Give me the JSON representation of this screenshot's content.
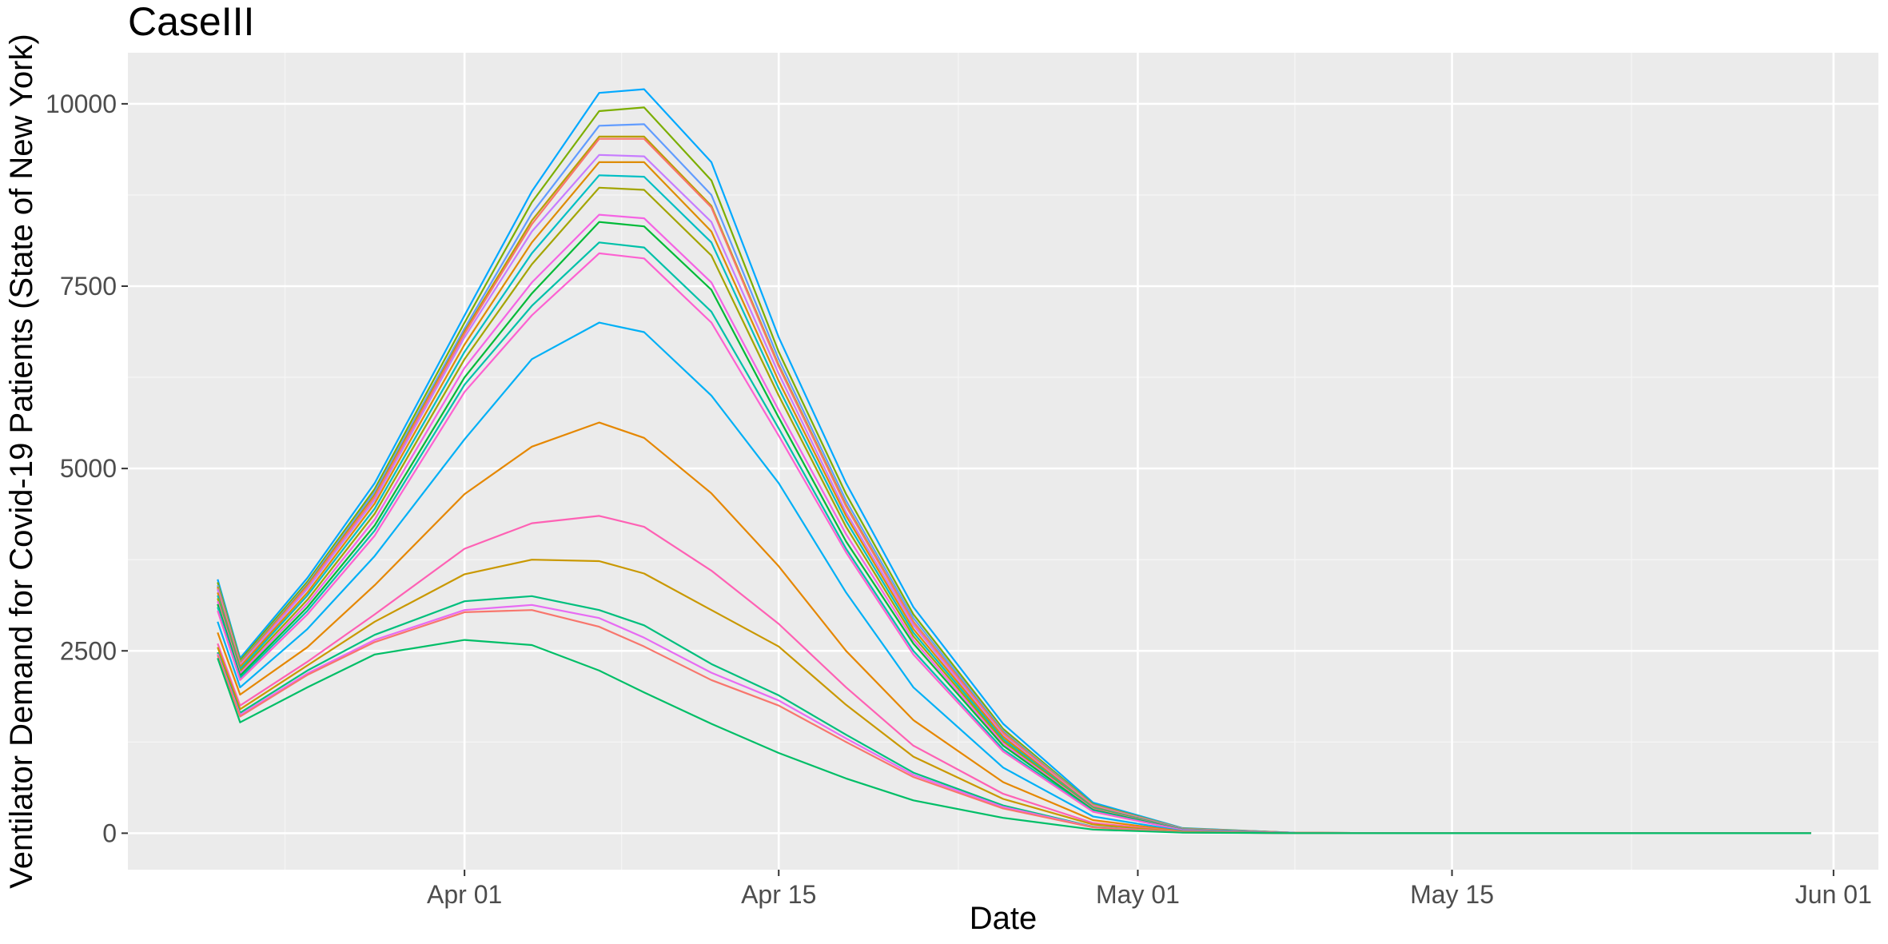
{
  "chart_data": {
    "type": "line",
    "title": "CaseIII",
    "xlabel": "Date",
    "ylabel": "Ventilator Demand for Covid-19 Patients (State of New York)",
    "x_axis": {
      "type": "date",
      "domain": [
        "2020-03-17",
        "2020-06-03"
      ],
      "ticks": [
        {
          "value": "2020-04-01",
          "label": "Apr 01"
        },
        {
          "value": "2020-04-15",
          "label": "Apr 15"
        },
        {
          "value": "2020-05-01",
          "label": "May 01"
        },
        {
          "value": "2020-05-15",
          "label": "May 15"
        },
        {
          "value": "2020-06-01",
          "label": "Jun 01"
        }
      ],
      "minor_ticks": [
        "2020-03-24",
        "2020-04-08",
        "2020-04-23",
        "2020-05-08",
        "2020-05-23"
      ]
    },
    "y_axis": {
      "ylim": [
        -500,
        10700
      ],
      "ticks": [
        0,
        2500,
        5000,
        7500,
        10000
      ],
      "minor_ticks": [
        1250,
        3750,
        6250,
        8750
      ]
    },
    "grid": true,
    "legend": "none",
    "colors": {
      "panel_background": "#ebebeb",
      "grid_major": "#ffffff",
      "grid_minor": "#f5f5f5"
    },
    "series_dates": [
      "2020-03-21",
      "2020-03-22",
      "2020-03-25",
      "2020-03-28",
      "2020-04-01",
      "2020-04-04",
      "2020-04-07",
      "2020-04-09",
      "2020-04-12",
      "2020-04-15",
      "2020-04-18",
      "2020-04-21",
      "2020-04-25",
      "2020-04-29",
      "2020-05-03",
      "2020-05-08",
      "2020-05-15",
      "2020-05-31"
    ],
    "series": [
      {
        "color": "#00a9ff",
        "values": [
          3480,
          2400,
          3500,
          4800,
          7100,
          8800,
          10150,
          10200,
          9200,
          6800,
          4800,
          3100,
          1500,
          420,
          70,
          5,
          0,
          0
        ]
      },
      {
        "color": "#7cae00",
        "values": [
          3440,
          2370,
          3450,
          4720,
          7000,
          8650,
          9900,
          9950,
          8950,
          6600,
          4650,
          3000,
          1430,
          400,
          65,
          5,
          0,
          0
        ]
      },
      {
        "color": "#619cff",
        "values": [
          3400,
          2340,
          3420,
          4680,
          6920,
          8500,
          9700,
          9720,
          8750,
          6500,
          4560,
          2950,
          1400,
          390,
          62,
          5,
          0,
          0
        ]
      },
      {
        "color": "#b79f00",
        "values": [
          3380,
          2330,
          3400,
          4640,
          6880,
          8400,
          9550,
          9550,
          8600,
          6420,
          4500,
          2900,
          1380,
          385,
          60,
          5,
          0,
          0
        ]
      },
      {
        "color": "#f8766d",
        "values": [
          3360,
          2320,
          3380,
          4610,
          6850,
          8350,
          9520,
          9520,
          8580,
          6400,
          4480,
          2890,
          1370,
          382,
          59,
          5,
          0,
          0
        ]
      },
      {
        "color": "#c77cff",
        "values": [
          3340,
          2300,
          3350,
          4570,
          6800,
          8250,
          9300,
          9280,
          8380,
          6300,
          4400,
          2850,
          1340,
          370,
          57,
          5,
          0,
          0
        ]
      },
      {
        "color": "#de8c00",
        "values": [
          3300,
          2280,
          3300,
          4520,
          6700,
          8100,
          9200,
          9200,
          8250,
          6200,
          4350,
          2800,
          1320,
          360,
          55,
          5,
          0,
          0
        ]
      },
      {
        "color": "#00bfc4",
        "values": [
          3260,
          2250,
          3260,
          4450,
          6600,
          7950,
          9020,
          9000,
          8100,
          6100,
          4280,
          2750,
          1290,
          350,
          53,
          4,
          0,
          0
        ]
      },
      {
        "color": "#a3a500",
        "values": [
          3220,
          2220,
          3200,
          4380,
          6500,
          7800,
          8850,
          8820,
          7920,
          6000,
          4200,
          2700,
          1260,
          340,
          50,
          4,
          0,
          0
        ]
      },
      {
        "color": "#f564e3",
        "values": [
          3180,
          2190,
          3150,
          4300,
          6380,
          7550,
          8480,
          8430,
          7550,
          5800,
          4100,
          2650,
          1230,
          330,
          48,
          4,
          0,
          0
        ]
      },
      {
        "color": "#00ba38",
        "values": [
          3140,
          2160,
          3100,
          4220,
          6250,
          7400,
          8380,
          8320,
          7450,
          5700,
          4000,
          2600,
          1200,
          320,
          46,
          4,
          0,
          0
        ]
      },
      {
        "color": "#00c1a9",
        "values": [
          3100,
          2130,
          3050,
          4150,
          6150,
          7230,
          8100,
          8030,
          7150,
          5550,
          3900,
          2500,
          1150,
          305,
          43,
          4,
          0,
          0
        ]
      },
      {
        "color": "#fd61d1",
        "values": [
          3050,
          2100,
          3000,
          4080,
          6050,
          7100,
          7950,
          7880,
          7000,
          5450,
          3850,
          2450,
          1120,
          295,
          41,
          4,
          0,
          0
        ]
      },
      {
        "color": "#00b0f6",
        "values": [
          2900,
          2000,
          2800,
          3800,
          5400,
          6500,
          7000,
          6870,
          6000,
          4800,
          3300,
          2000,
          900,
          230,
          30,
          3,
          0,
          0
        ]
      },
      {
        "color": "#e58700",
        "values": [
          2750,
          1900,
          2550,
          3400,
          4650,
          5300,
          5630,
          5420,
          4660,
          3660,
          2500,
          1550,
          700,
          180,
          24,
          2,
          0,
          0
        ]
      },
      {
        "color": "#fe61b4",
        "values": [
          2600,
          1750,
          2350,
          3000,
          3900,
          4250,
          4350,
          4200,
          3600,
          2870,
          2000,
          1200,
          540,
          140,
          18,
          2,
          0,
          0
        ]
      },
      {
        "color": "#c99800",
        "values": [
          2550,
          1700,
          2300,
          2900,
          3550,
          3750,
          3730,
          3560,
          3060,
          2560,
          1760,
          1050,
          470,
          120,
          15,
          1,
          0,
          0
        ]
      },
      {
        "color": "#00bf7d",
        "values": [
          2480,
          1650,
          2230,
          2720,
          3180,
          3250,
          3060,
          2850,
          2320,
          1890,
          1350,
          830,
          380,
          90,
          12,
          1,
          0,
          0
        ]
      },
      {
        "color": "#e76bf3",
        "values": [
          2460,
          1620,
          2190,
          2650,
          3060,
          3130,
          2950,
          2680,
          2200,
          1820,
          1300,
          800,
          360,
          85,
          11,
          1,
          0,
          0
        ]
      },
      {
        "color": "#f8766d",
        "values": [
          2440,
          1600,
          2170,
          2620,
          3030,
          3060,
          2830,
          2560,
          2100,
          1750,
          1250,
          770,
          340,
          80,
          10,
          1,
          0,
          0
        ]
      },
      {
        "color": "#00be67",
        "values": [
          2400,
          1520,
          2000,
          2450,
          2650,
          2580,
          2230,
          1930,
          1500,
          1100,
          750,
          450,
          210,
          50,
          7,
          1,
          0,
          0
        ]
      }
    ]
  }
}
